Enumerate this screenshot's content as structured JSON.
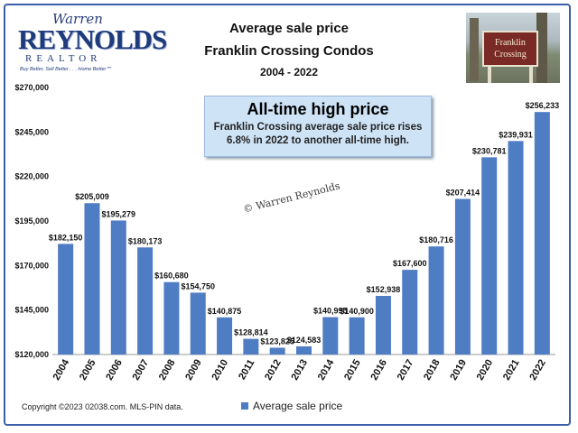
{
  "logo": {
    "script_name": "Warren",
    "surname": "REYNOLDS",
    "realtor": "REALTOR",
    "tagline": "Buy Better, Sell Better . . . Home Better℠"
  },
  "header": {
    "title_line1": "Average sale price",
    "title_line2": "Franklin Crossing Condos",
    "years": "2004 - 2022"
  },
  "photo": {
    "sign_text": "Franklin Crossing"
  },
  "callout": {
    "heading": "All-time high price",
    "line1": "Franklin Crossing average sale price rises",
    "line2": "6.8% in 2022 to another all-time high."
  },
  "watermark": "© Warren Reynolds",
  "footer": "Copyright ©2023 02038.com.  MLS-PIN data.",
  "colors": {
    "bar": "#4f7dc4",
    "frame": "#3a5fa8"
  },
  "chart_data": {
    "type": "bar",
    "title": "Average sale price Franklin Crossing Condos",
    "categories": [
      "2004",
      "2005",
      "2006",
      "2007",
      "2008",
      "2009",
      "2010",
      "2011",
      "2012",
      "2013",
      "2014",
      "2015",
      "2016",
      "2017",
      "2018",
      "2019",
      "2020",
      "2021",
      "2022"
    ],
    "series": [
      {
        "name": "Average sale price",
        "values": [
          182150,
          205009,
          195279,
          180173,
          160680,
          154750,
          140875,
          128814,
          123825,
          124583,
          140995,
          140900,
          152938,
          167600,
          180716,
          207414,
          230781,
          239931,
          256233
        ],
        "labels": [
          "$182,150",
          "$205,009",
          "$195,279",
          "$180,173",
          "$160,680",
          "$154,750",
          "$140,875",
          "$128,814",
          "$123,825",
          "$124,583",
          "$140,995",
          "$140,900",
          "$152,938",
          "$167,600",
          "$180,716",
          "$207,414",
          "$230,781",
          "$239,931",
          "$256,233"
        ]
      }
    ],
    "ylim": [
      120000,
      270000
    ],
    "yticks": [
      120000,
      145000,
      170000,
      195000,
      220000,
      245000,
      270000
    ],
    "ytick_labels": [
      "$120,000",
      "$145,000",
      "$170,000",
      "$195,000",
      "$220,000",
      "$245,000",
      "$270,000"
    ],
    "grid": false,
    "legend": "bottom"
  }
}
